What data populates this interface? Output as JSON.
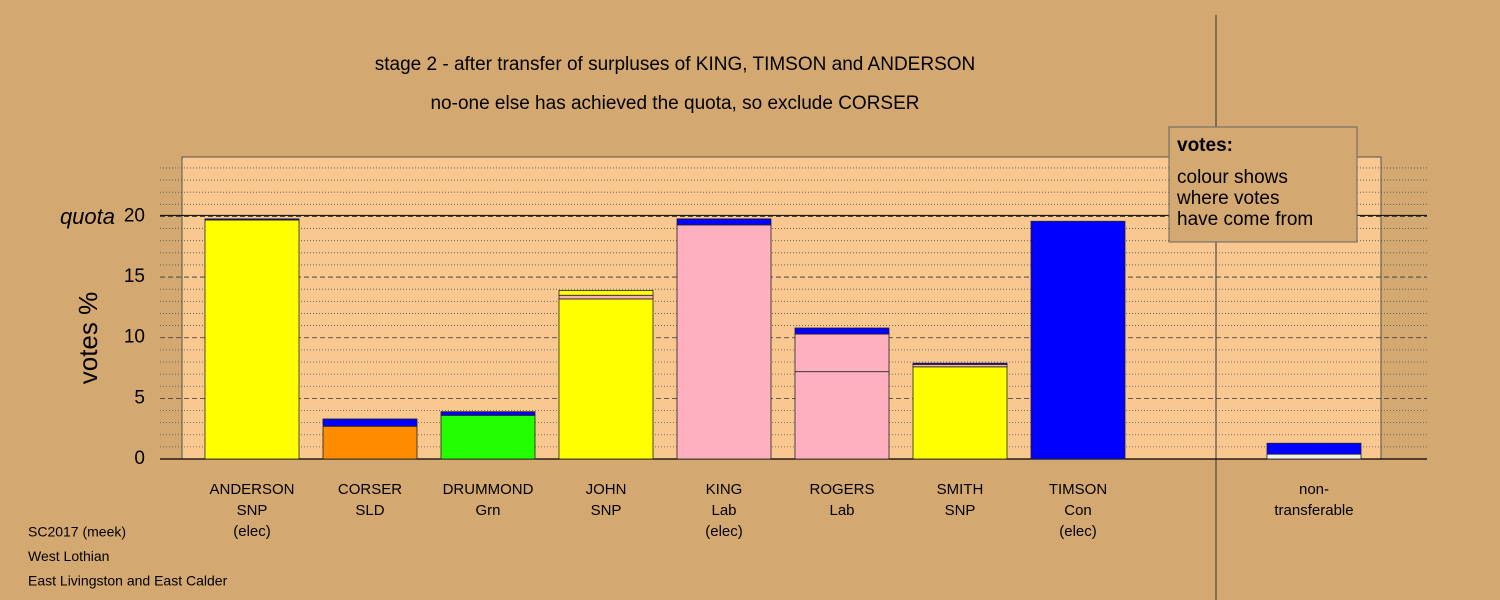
{
  "chart_data": {
    "type": "bar",
    "stacked": true,
    "title": "stage 2 - after transfer of surpluses of KING, TIMSON and ANDERSON",
    "subtitle": "no-one else has achieved the quota, so exclude CORSER",
    "y_label": "votes %",
    "ylim": [
      0,
      24.9
    ],
    "yticks": [
      0,
      5,
      10,
      15,
      20
    ],
    "minor_yticks": [
      1,
      2,
      3,
      4,
      6,
      7,
      8,
      9,
      11,
      12,
      13,
      14,
      16,
      17,
      18,
      19,
      21,
      22,
      23,
      24
    ],
    "quota": 20,
    "quota_label": "quota",
    "legend_title": "votes:",
    "legend_text": [
      "colour shows",
      "where votes",
      "have come from"
    ],
    "bars": [
      {
        "label": [
          "ANDERSON",
          "SNP",
          "(elec)"
        ],
        "segments": [
          {
            "color": "#ffff00",
            "value": 19.7
          },
          {
            "color": "#0000ff",
            "value": 0.1
          }
        ]
      },
      {
        "label": [
          "CORSER",
          "SLD"
        ],
        "segments": [
          {
            "color": "#ff8c00",
            "value": 2.7
          },
          {
            "color": "#0000ff",
            "value": 0.6
          }
        ]
      },
      {
        "label": [
          "DRUMMOND",
          "Grn"
        ],
        "segments": [
          {
            "color": "#22ff00",
            "value": 3.6
          },
          {
            "color": "#0000ff",
            "value": 0.3
          }
        ]
      },
      {
        "label": [
          "JOHN",
          "SNP"
        ],
        "segments": [
          {
            "color": "#ffff00",
            "value": 13.2
          },
          {
            "color": "#ffb0c0",
            "value": 0.3
          },
          {
            "color": "#ffff00",
            "value": 0.4
          }
        ]
      },
      {
        "label": [
          "KING",
          "Lab",
          "(elec)"
        ],
        "segments": [
          {
            "color": "#ffb0c0",
            "value": 19.3
          },
          {
            "color": "#0000ff",
            "value": 0.5
          }
        ]
      },
      {
        "label": [
          "ROGERS",
          "Lab"
        ],
        "segments": [
          {
            "color": "#ffb0c0",
            "value": 7.2
          },
          {
            "color": "#ffb0c0",
            "value": 3.1
          },
          {
            "color": "#0000ff",
            "value": 0.5
          }
        ]
      },
      {
        "label": [
          "SMITH",
          "SNP"
        ],
        "segments": [
          {
            "color": "#ffff00",
            "value": 7.6
          },
          {
            "color": "#ffb0c0",
            "value": 0.2
          },
          {
            "color": "#0000ff",
            "value": 0.1
          }
        ]
      },
      {
        "label": [
          "TIMSON",
          "Con",
          "(elec)"
        ],
        "segments": [
          {
            "color": "#0000ff",
            "value": 19.6
          }
        ]
      },
      {
        "label": null,
        "segments": []
      },
      {
        "label": [
          "non-",
          "transferable"
        ],
        "segments": [
          {
            "color": "#f2f0ea",
            "value": 0.4
          },
          {
            "color": "#0000ff",
            "value": 0.9
          }
        ]
      }
    ],
    "footer": [
      "SC2017 (meek)",
      "West Lothian",
      "East Livingston and East Calder"
    ]
  }
}
